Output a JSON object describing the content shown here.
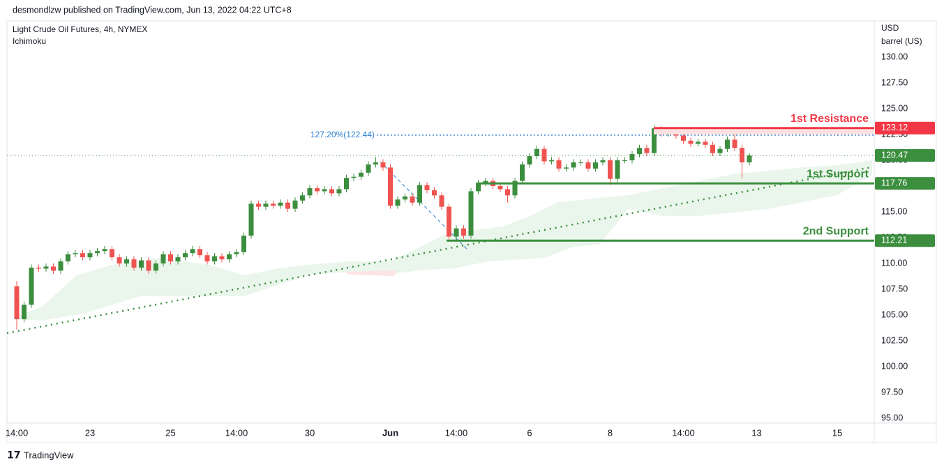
{
  "header": "desmondlzw published on TradingView.com, Jun 13, 2022 04:22 UTC+8",
  "footer": "TradingView",
  "chart_data": {
    "type": "candlestick",
    "title": "Light Crude Oil Futures, 4h, NYMEX",
    "subtitle": "Ichimoku",
    "y_axis_label": "USD",
    "y_axis_unit": "barrel (US)",
    "up_color": "#3b8e3e",
    "down_color": "#ef5350",
    "categories": [
      "14:00",
      null,
      null,
      null,
      null,
      null,
      null,
      null,
      null,
      null,
      "23",
      null,
      null,
      null,
      null,
      null,
      null,
      null,
      null,
      null,
      null,
      "25",
      null,
      null,
      null,
      null,
      null,
      null,
      null,
      null,
      "14:00",
      null,
      null,
      null,
      null,
      null,
      null,
      null,
      null,
      null,
      "30",
      null,
      null,
      null,
      null,
      null,
      null,
      null,
      null,
      null,
      null,
      "Jun",
      null,
      null,
      null,
      null,
      null,
      null,
      null,
      null,
      "14:00",
      null,
      null,
      null,
      null,
      null,
      null,
      null,
      null,
      null,
      "6",
      null,
      null,
      null,
      null,
      null,
      null,
      null,
      null,
      null,
      null,
      "8",
      null,
      null,
      null,
      null,
      null,
      null,
      null,
      null,
      null,
      "14:00",
      null,
      null,
      null,
      null,
      null,
      null,
      null,
      null,
      null,
      "13",
      null,
      null,
      null,
      null,
      null,
      null,
      null,
      null,
      null,
      null,
      "15",
      null,
      null,
      null,
      null
    ],
    "open": [
      107.8,
      104.6,
      106.0,
      109.6,
      109.5,
      109.7,
      109.3,
      110.2,
      110.9,
      111.0,
      110.6,
      111.0,
      111.2,
      111.4,
      110.6,
      110.0,
      110.4,
      109.6,
      110.3,
      109.3,
      110.0,
      110.9,
      110.2,
      110.6,
      111.0,
      111.4,
      110.8,
      110.2,
      110.7,
      110.4,
      110.9,
      111.1,
      112.7,
      115.8,
      115.5,
      115.8,
      115.6,
      115.9,
      115.3,
      116.1,
      116.6,
      117.3,
      117.0,
      117.2,
      116.8,
      117.2,
      118.3,
      118.4,
      118.8,
      119.6,
      119.8,
      119.3,
      115.6,
      116.2,
      116.5,
      115.9,
      117.6,
      117.1,
      116.6,
      115.5,
      112.6,
      113.4,
      112.7,
      117.0,
      117.8,
      118.0,
      117.5,
      117.2,
      116.6,
      118.0,
      119.6,
      120.4,
      121.1,
      119.9,
      120.0,
      119.2,
      119.3,
      119.8,
      119.8,
      119.2,
      119.8,
      120.0,
      118.2,
      120.0,
      120.0,
      120.6,
      121.2,
      120.7,
      123.1,
      122.6,
      122.7,
      122.4,
      121.9,
      121.6,
      121.8,
      121.5,
      120.7,
      121.1,
      122.0,
      121.2,
      119.8,
      null,
      null,
      null,
      null,
      null,
      null,
      null,
      null,
      null,
      null,
      null,
      null,
      null,
      null,
      null,
      null
    ],
    "high": [
      108.3,
      106.3,
      109.9,
      109.9,
      110.0,
      110.0,
      110.5,
      111.2,
      111.3,
      111.3,
      111.3,
      111.5,
      111.7,
      111.7,
      110.9,
      110.7,
      110.7,
      110.6,
      110.6,
      110.3,
      111.2,
      111.2,
      110.9,
      111.3,
      111.7,
      111.7,
      111.1,
      111.0,
      111.0,
      111.2,
      111.4,
      113.0,
      116.1,
      116.1,
      116.1,
      116.1,
      116.2,
      116.2,
      116.4,
      116.9,
      117.6,
      117.6,
      117.5,
      117.5,
      117.5,
      118.6,
      118.7,
      119.1,
      119.9,
      120.3,
      120.1,
      119.6,
      116.5,
      116.8,
      116.8,
      117.9,
      117.9,
      117.4,
      116.9,
      115.8,
      113.7,
      113.7,
      117.3,
      118.1,
      118.3,
      118.3,
      117.8,
      117.5,
      118.3,
      119.9,
      120.7,
      121.4,
      121.4,
      120.3,
      120.3,
      119.6,
      120.1,
      120.1,
      120.1,
      120.1,
      120.3,
      120.3,
      120.3,
      120.3,
      120.9,
      121.5,
      121.5,
      123.4,
      123.3,
      123.0,
      123.0,
      122.7,
      122.2,
      122.1,
      122.1,
      121.8,
      121.4,
      122.3,
      122.6,
      121.5,
      120.7,
      null,
      null,
      null,
      null,
      null,
      null,
      null,
      null,
      null,
      null,
      null,
      null,
      null,
      null,
      null,
      null
    ],
    "low": [
      103.6,
      104.3,
      105.7,
      109.2,
      109.2,
      109.0,
      109.0,
      109.9,
      110.6,
      110.3,
      110.3,
      110.7,
      110.9,
      110.3,
      109.7,
      109.7,
      109.3,
      109.3,
      109.0,
      109.0,
      109.7,
      109.9,
      109.9,
      110.3,
      110.7,
      110.5,
      109.9,
      109.9,
      110.1,
      110.1,
      110.6,
      110.8,
      112.4,
      115.2,
      115.2,
      115.3,
      115.3,
      115.0,
      115.0,
      115.8,
      116.3,
      116.7,
      116.7,
      116.5,
      116.5,
      116.9,
      118.0,
      118.1,
      118.5,
      119.3,
      119.0,
      115.3,
      115.3,
      115.9,
      115.6,
      115.6,
      116.8,
      116.3,
      115.2,
      112.2,
      112.3,
      112.4,
      112.4,
      116.7,
      117.5,
      117.2,
      116.9,
      115.9,
      116.3,
      117.7,
      119.3,
      120.1,
      119.6,
      119.6,
      118.9,
      118.9,
      119.0,
      119.5,
      118.9,
      118.9,
      119.5,
      117.6,
      117.9,
      119.7,
      119.7,
      120.3,
      120.4,
      120.4,
      122.3,
      122.3,
      122.1,
      121.6,
      121.3,
      121.3,
      121.2,
      120.4,
      120.4,
      120.8,
      120.9,
      118.2,
      119.5,
      null,
      null,
      null,
      null,
      null,
      null,
      null,
      null,
      null,
      null,
      null,
      null,
      null,
      null,
      null,
      null
    ],
    "close": [
      104.6,
      106.0,
      109.6,
      109.5,
      109.7,
      109.3,
      110.2,
      110.9,
      111.0,
      110.6,
      111.0,
      111.2,
      111.4,
      110.6,
      110.0,
      110.4,
      109.6,
      110.3,
      109.3,
      110.0,
      110.9,
      110.2,
      110.6,
      111.0,
      111.4,
      110.8,
      110.2,
      110.7,
      110.4,
      110.9,
      111.1,
      112.7,
      115.8,
      115.5,
      115.8,
      115.6,
      115.9,
      115.3,
      116.1,
      116.6,
      117.3,
      117.0,
      117.2,
      116.8,
      117.2,
      118.3,
      118.4,
      118.8,
      119.6,
      119.8,
      119.3,
      115.6,
      116.2,
      116.5,
      115.9,
      117.6,
      117.1,
      116.6,
      115.5,
      112.6,
      113.4,
      112.7,
      117.0,
      117.8,
      118.0,
      117.5,
      117.2,
      116.6,
      118.0,
      119.6,
      120.4,
      121.1,
      119.9,
      120.0,
      119.2,
      119.3,
      119.8,
      119.8,
      119.2,
      119.8,
      120.0,
      118.2,
      120.0,
      120.0,
      120.6,
      121.2,
      120.7,
      123.1,
      122.6,
      122.7,
      122.4,
      121.9,
      121.6,
      121.8,
      121.5,
      120.7,
      121.1,
      122.0,
      121.2,
      119.8,
      120.47,
      null,
      null,
      null,
      null,
      null,
      null,
      null,
      null,
      null,
      null,
      null,
      null,
      null,
      null,
      null,
      null
    ],
    "ylim": [
      94.53,
      133.51
    ],
    "yticks": [
      {
        "value": 95,
        "label": "95.00"
      },
      {
        "value": 97.5,
        "label": "97.50"
      },
      {
        "value": 100,
        "label": "100.00"
      },
      {
        "value": 102.5,
        "label": "102.50"
      },
      {
        "value": 105,
        "label": "105.00"
      },
      {
        "value": 107.5,
        "label": "107.50"
      },
      {
        "value": 110,
        "label": "110.00"
      },
      {
        "value": 112.5,
        "label": "112.50"
      },
      {
        "value": 115,
        "label": "115.00"
      },
      {
        "value": 117.5,
        "label": "117.50"
      },
      {
        "value": 120,
        "label": "120.00"
      },
      {
        "value": 122.5,
        "label": "122.50"
      },
      {
        "value": 125,
        "label": "125.00"
      },
      {
        "value": 127.5,
        "label": "127.50"
      },
      {
        "value": 130,
        "label": "130.00"
      }
    ],
    "last_price": 120.47,
    "last_price_color": "#3b8e3e",
    "levels": [
      {
        "name": "1st Resistance",
        "value": 123.12,
        "color": "#f23645"
      },
      {
        "name": "1st Support",
        "value": 117.76,
        "color": "#3b8e3e"
      },
      {
        "name": "2nd Support",
        "value": 112.21,
        "color": "#3b8e3e"
      }
    ],
    "fib": {
      "label": "127.20%(122.44)",
      "value": 122.44,
      "color": "#2a7fd4"
    }
  }
}
